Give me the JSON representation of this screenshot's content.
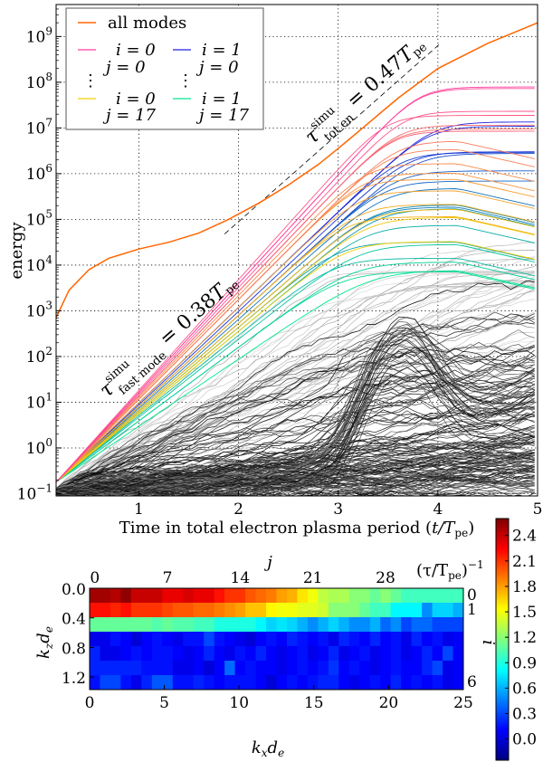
{
  "chart_data": [
    {
      "type": "line",
      "title": "",
      "xlabel": {
        "text": "Time in total electron plasma period (",
        "var": "t/T",
        "sub": "pe",
        "close": ")"
      },
      "ylabel": "energy",
      "yscale": "log",
      "xlim": [
        0.17,
        5.0
      ],
      "ylim_log10": [
        -1.05,
        9.7
      ],
      "grid": true,
      "xticks": [
        1,
        2,
        3,
        4,
        5
      ],
      "xtick_labels": [
        "1",
        "2",
        "3",
        "4",
        "5"
      ],
      "ytick_exponents": [
        -1,
        0,
        1,
        2,
        3,
        4,
        5,
        6,
        7,
        8,
        9
      ],
      "ytick_base": "10",
      "ytick_exp_labels": [
        "−1",
        "0",
        "1",
        "2",
        "3",
        "4",
        "5",
        "6",
        "7",
        "8",
        "9"
      ],
      "legend_position": "top-left",
      "legend": {
        "all": "all modes",
        "a_i": "i = 0",
        "a_j": "j = 0",
        "b_i": "i = 1",
        "b_j": "j = 0",
        "c_i": "i = 0",
        "c_j": "j = 17",
        "d_i": "i = 1",
        "d_j": "j = 17",
        "dots": "⋮"
      },
      "colors": {
        "all_modes": "#ff6600",
        "i0_start": "#ff3fa0",
        "i0_end": "#f2d000",
        "i1_start": "#2020e0",
        "i1_end": "#00e890"
      },
      "all_modes": {
        "t": [
          0.17,
          0.3,
          0.5,
          0.7,
          1.0,
          1.3,
          1.6,
          1.9,
          2.2,
          2.5,
          2.8,
          3.0,
          3.3,
          3.6,
          4.0,
          4.5,
          5.0
        ],
        "log10_energy": [
          2.85,
          3.45,
          3.9,
          4.15,
          4.35,
          4.5,
          4.7,
          5.0,
          5.35,
          5.75,
          6.2,
          6.55,
          7.1,
          7.65,
          8.3,
          8.85,
          9.3
        ]
      },
      "fit_total_line": {
        "t": [
          1.86,
          4.01
        ],
        "log10_energy": [
          4.68,
          8.82
        ]
      },
      "mode_model": {
        "start_log10": -0.75,
        "growth_factor": 0.95,
        "note_source": "growth rates from heatmap"
      },
      "annotations": [
        {
          "symbol": "τ",
          "sup": "simu",
          "sub": "fast mode",
          "eq": " = 0.38",
          "var": "T",
          "var_sub": "pe"
        },
        {
          "symbol": "τ",
          "sup": "simu",
          "sub": "tot en",
          "eq": " = 0.47",
          "var": "T",
          "var_sub": "pe"
        }
      ]
    },
    {
      "type": "heatmap",
      "xlabel": {
        "k": "k",
        "ks": "x",
        "d": "d",
        "ds": "e"
      },
      "ylabel": {
        "k": "k",
        "ks": "z",
        "d": "d",
        "ds": "e"
      },
      "top_label": "j",
      "right_label": "i",
      "colorbar_label": {
        "open": "(τ/T",
        "sub": "pe",
        "close": ")",
        "sup": "−1"
      },
      "x_ticks": [
        0,
        5,
        10,
        15,
        20,
        25
      ],
      "x_range": [
        0,
        25
      ],
      "y_ticks": [
        "0.0",
        "0.4",
        "0.8",
        "1.2"
      ],
      "y_tick_values": [
        0.0,
        0.4,
        0.8,
        1.2
      ],
      "y_range": [
        0,
        1.37
      ],
      "j_ticks": [
        0,
        7,
        14,
        21,
        28
      ],
      "i_ticks": [
        0,
        1,
        6
      ],
      "colormap": "jet",
      "clim": [
        -0.25,
        2.6
      ],
      "colorbar_ticks": [
        "0.0",
        "0.3",
        "0.6",
        "0.9",
        "1.2",
        "1.5",
        "1.8",
        "2.1",
        "2.4"
      ],
      "colorbar_tick_values": [
        0.0,
        0.3,
        0.6,
        0.9,
        1.2,
        1.5,
        1.8,
        2.1,
        2.4
      ],
      "values": [
        [
          2.5,
          2.5,
          2.45,
          2.55,
          2.4,
          2.4,
          2.4,
          2.3,
          2.3,
          2.35,
          2.3,
          2.3,
          2.2,
          2.1,
          2.1,
          2.0,
          1.95,
          1.9,
          1.8,
          1.75,
          1.6,
          1.5,
          1.35,
          1.3,
          1.3,
          1.2,
          1.2,
          1.1,
          1.2,
          1.1,
          1.0,
          1.0,
          1.0,
          1.0,
          1.0,
          1.0
        ],
        [
          2.2,
          2.2,
          2.15,
          2.2,
          2.1,
          2.1,
          2.1,
          2.05,
          2.0,
          2.0,
          1.95,
          1.95,
          1.9,
          1.85,
          1.8,
          1.7,
          1.7,
          1.55,
          1.5,
          1.5,
          1.45,
          1.45,
          1.4,
          1.2,
          1.2,
          1.2,
          1.1,
          1.0,
          1.0,
          0.8,
          0.8,
          0.8,
          0.5,
          0.7,
          0.7,
          0.6
        ],
        [
          1.1,
          1.1,
          1.1,
          1.1,
          1.1,
          1.1,
          1.05,
          1.1,
          1.05,
          1.05,
          1.0,
          1.0,
          0.9,
          0.9,
          0.9,
          0.9,
          0.8,
          0.7,
          0.75,
          0.7,
          0.6,
          0.5,
          0.6,
          0.7,
          0.6,
          0.5,
          0.5,
          0.6,
          0.4,
          0.5,
          0.3,
          0.4,
          0.4,
          0.3,
          0.3,
          0.3
        ],
        [
          0.05,
          0.05,
          0.15,
          0.1,
          0.0,
          0.1,
          0.15,
          0.1,
          0.05,
          0.15,
          0.15,
          0.3,
          0.15,
          0.1,
          0.05,
          0.0,
          0.1,
          0.15,
          0.1,
          0.2,
          0.15,
          0.1,
          0.15,
          0.05,
          0.2,
          0.15,
          0.1,
          0.2,
          0.1,
          0.15,
          0.05,
          0.2,
          0.1,
          0.15,
          0.05,
          0.1
        ],
        [
          0.2,
          0.05,
          0.05,
          0.1,
          0.15,
          0.1,
          0.15,
          0.15,
          0.1,
          0.05,
          0.1,
          0.2,
          0.1,
          0.05,
          0.15,
          0.1,
          0.2,
          0.1,
          0.05,
          0.1,
          0.15,
          0.05,
          0.1,
          0.2,
          0.05,
          0.1,
          0.15,
          0.05,
          0.1,
          0.15,
          0.05,
          0.1,
          0.2,
          0.1,
          0.3,
          0.1
        ],
        [
          0.2,
          0.2,
          0.2,
          0.2,
          0.2,
          0.15,
          0.15,
          0.15,
          0.05,
          0.05,
          0.1,
          0.0,
          0.1,
          0.4,
          0.1,
          0.15,
          0.1,
          0.1,
          0.05,
          0.1,
          0.15,
          0.1,
          0.15,
          0.25,
          0.1,
          0.15,
          0.1,
          0.05,
          0.1,
          0.15,
          0.1,
          0.1,
          0.2,
          0.3,
          0.05,
          0.1
        ],
        [
          0.15,
          0.3,
          0.3,
          0.15,
          0.05,
          0.2,
          0.35,
          0.35,
          0.15,
          0.15,
          0.2,
          0.15,
          0.1,
          0.15,
          0.15,
          0.15,
          0.1,
          0.0,
          0.1,
          0.15,
          0.1,
          0.15,
          0.2,
          0.2,
          0.1,
          0.05,
          0.1,
          0.15,
          0.1,
          0.2,
          0.1,
          0.15,
          0.1,
          0.15,
          0.05,
          0.1
        ]
      ]
    }
  ]
}
